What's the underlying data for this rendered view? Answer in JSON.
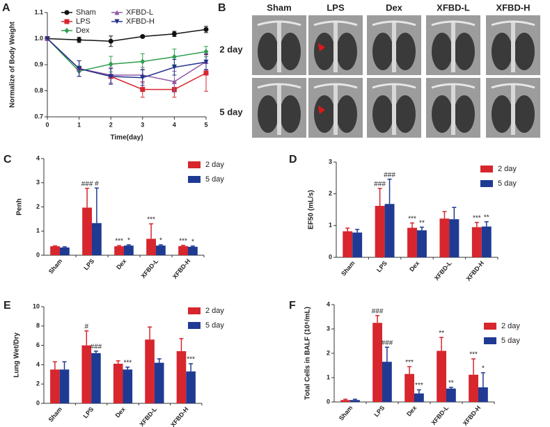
{
  "chart_data": [
    {
      "panel": "A",
      "type": "line",
      "x": [
        0,
        1,
        2,
        3,
        4,
        5
      ],
      "xlim": [
        0,
        5
      ],
      "xticks": [
        0,
        1,
        2,
        3,
        4,
        5
      ],
      "ylim": [
        0.7,
        1.1
      ],
      "yticks": [
        0.7,
        0.8,
        0.9,
        {
          "value": 1,
          "label": "1.0"
        },
        1.1
      ],
      "xlabel": "Time(day)",
      "ylabel": "Normalize of Body Weight",
      "series": [
        {
          "name": "Sham",
          "color": "#111111",
          "marker": "circle",
          "values": [
            1.0,
            0.995,
            0.99,
            1.008,
            1.018,
            1.035
          ],
          "errors": [
            0,
            0.01,
            0.02,
            0.005,
            0.01,
            0.012
          ]
        },
        {
          "name": "LPS",
          "color": "#d7262d",
          "marker": "square",
          "values": [
            1.0,
            0.885,
            0.855,
            0.805,
            0.805,
            0.868
          ],
          "errors": [
            0,
            0.03,
            0.03,
            0.03,
            0.03,
            0.07
          ]
        },
        {
          "name": "Dex",
          "color": "#2e9e4f",
          "marker": "diamond",
          "values": [
            1.0,
            0.875,
            0.902,
            0.912,
            0.93,
            0.95
          ],
          "errors": [
            0,
            0.02,
            0.03,
            0.03,
            0.03,
            0.02
          ]
        },
        {
          "name": "XFBD-L",
          "color": "#8e5aa8",
          "marker": "triangle-up",
          "values": [
            1.0,
            0.885,
            0.86,
            0.86,
            0.835,
            0.912
          ],
          "errors": [
            0,
            0.03,
            0.03,
            0.03,
            0.04,
            0.03
          ]
        },
        {
          "name": "XFBD-H",
          "color": "#22318c",
          "marker": "triangle-down",
          "values": [
            1.0,
            0.885,
            0.855,
            0.85,
            0.89,
            0.91
          ],
          "errors": [
            0,
            0.03,
            0.03,
            0.03,
            0.03,
            0.03
          ]
        }
      ]
    },
    {
      "panel": "C",
      "type": "bar",
      "categories": [
        "Sham",
        "LPS",
        "Dex",
        "XFBD-L",
        "XFBD-H"
      ],
      "ylabel": "Penh",
      "ylim": [
        0,
        4
      ],
      "yticks": [
        0,
        1,
        2,
        3,
        4
      ],
      "series": [
        {
          "name": "2 day",
          "color": "#d7262d",
          "values": [
            0.37,
            1.97,
            0.37,
            0.68,
            0.38
          ],
          "errors": [
            0.02,
            0.8,
            0.03,
            0.62,
            0.03
          ],
          "annotations": [
            null,
            "###",
            "***",
            "***",
            "***"
          ]
        },
        {
          "name": "5 day",
          "color": "#1f3a93",
          "values": [
            0.32,
            1.33,
            0.4,
            0.4,
            0.35
          ],
          "errors": [
            0.03,
            1.45,
            0.03,
            0.03,
            0.03
          ],
          "annotations": [
            null,
            "#",
            "*",
            "*",
            "*"
          ]
        }
      ]
    },
    {
      "panel": "D",
      "type": "bar",
      "categories": [
        "Sham",
        "LPS",
        "Dex",
        "XFBD-L",
        "XFBD-H"
      ],
      "ylabel": "EF50 (mL/s)",
      "ylim": [
        0,
        3
      ],
      "yticks": [
        0,
        1,
        2,
        3
      ],
      "series": [
        {
          "name": "2 day",
          "color": "#d7262d",
          "values": [
            0.82,
            1.62,
            0.93,
            1.22,
            0.95
          ],
          "errors": [
            0.1,
            0.55,
            0.15,
            0.22,
            0.15
          ],
          "annotations": [
            null,
            "###",
            "***",
            null,
            "***"
          ]
        },
        {
          "name": "5 day",
          "color": "#1f3a93",
          "values": [
            0.78,
            1.68,
            0.85,
            1.2,
            0.97
          ],
          "errors": [
            0.1,
            0.78,
            0.1,
            0.37,
            0.15
          ],
          "annotations": [
            null,
            "###",
            "**",
            null,
            "**"
          ]
        }
      ]
    },
    {
      "panel": "E",
      "type": "bar",
      "categories": [
        "Sham",
        "LPS",
        "Dex",
        "XFBD-L",
        "XFBD-H"
      ],
      "ylabel": "Lung Wet/Dry",
      "ylim": [
        0,
        10
      ],
      "yticks": [
        0,
        2,
        4,
        6,
        8,
        10
      ],
      "series": [
        {
          "name": "2 day",
          "color": "#d7262d",
          "values": [
            3.5,
            6.0,
            4.1,
            6.6,
            5.4
          ],
          "errors": [
            0.8,
            1.5,
            0.3,
            1.3,
            1.3
          ],
          "annotations": [
            null,
            "#",
            null,
            null,
            null
          ]
        },
        {
          "name": "5 day",
          "color": "#1f3a93",
          "values": [
            3.5,
            5.2,
            3.5,
            4.2,
            3.3
          ],
          "errors": [
            0.8,
            0.2,
            0.25,
            0.4,
            0.8
          ],
          "annotations": [
            null,
            "###",
            "***",
            null,
            "***"
          ]
        }
      ]
    },
    {
      "panel": "F",
      "type": "bar",
      "categories": [
        "Sham",
        "LPS",
        "Dex",
        "XFBD-L",
        "XFBD-H"
      ],
      "ylabel": "Total Cells in BALF (10⁶/mL)",
      "ylim": [
        0,
        4
      ],
      "yticks": [
        0,
        1,
        2,
        3,
        4
      ],
      "series": [
        {
          "name": "2 day",
          "color": "#d7262d",
          "values": [
            0.08,
            3.25,
            1.15,
            2.1,
            1.12
          ],
          "errors": [
            0.03,
            0.3,
            0.3,
            0.55,
            0.65
          ],
          "annotations": [
            null,
            "###",
            "***",
            "**",
            "***"
          ]
        },
        {
          "name": "5 day",
          "color": "#1f3a93",
          "values": [
            0.08,
            1.65,
            0.35,
            0.55,
            0.6
          ],
          "errors": [
            0.03,
            0.6,
            0.15,
            0.05,
            0.6
          ],
          "annotations": [
            null,
            "###",
            "***",
            "**",
            "*"
          ]
        }
      ]
    }
  ],
  "ct_images": {
    "panel": "B",
    "columns": [
      "Sham",
      "LPS",
      "Dex",
      "XFBD-L",
      "XFBD-H"
    ],
    "rows": [
      "2 day",
      "5 day"
    ]
  }
}
